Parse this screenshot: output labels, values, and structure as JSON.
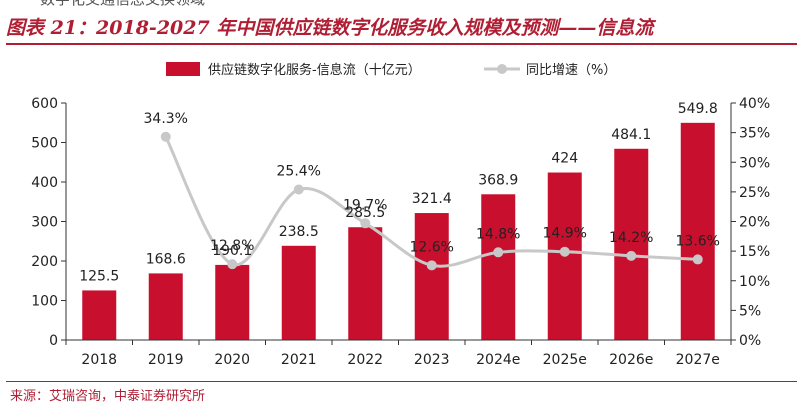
{
  "header": {
    "cut_text": "数字化交通信息交换领域",
    "title": "图表 21：2018-2027 年中国供应链数字化服务收入规模及预测——信息流"
  },
  "footer": {
    "source": "来源：艾瑞咨询，中泰证券研究所"
  },
  "chart_data": {
    "type": "bar",
    "categories": [
      "2018",
      "2019",
      "2020",
      "2021",
      "2022",
      "2023",
      "2024e",
      "2025e",
      "2026e",
      "2027e"
    ],
    "series": [
      {
        "name": "供应链数字化服务-信息流（十亿元）",
        "type": "bar",
        "axis": "left",
        "color": "#c8102e",
        "values": [
          125.5,
          168.6,
          190.1,
          238.5,
          285.5,
          321.4,
          368.9,
          424,
          484.1,
          549.8
        ],
        "labels": [
          "125.5",
          "168.6",
          "190.1",
          "238.5",
          "285.5",
          "321.4",
          "368.9",
          "424",
          "484.1",
          "549.8"
        ]
      },
      {
        "name": "同比增速（%）",
        "type": "line",
        "axis": "right",
        "color": "#c8c8c8",
        "values": [
          null,
          34.3,
          12.8,
          25.4,
          19.7,
          12.6,
          14.8,
          14.9,
          14.2,
          13.6
        ],
        "labels": [
          null,
          "34.3%",
          "12.8%",
          "25.4%",
          "19.7%",
          "12.6%",
          "14.8%",
          "14.9%",
          "14.2%",
          "13.6%"
        ]
      }
    ],
    "y_left": {
      "min": 0,
      "max": 600,
      "ticks": [
        "0",
        "100",
        "200",
        "300",
        "400",
        "500",
        "600"
      ]
    },
    "y_right": {
      "min": 0,
      "max": 40,
      "ticks": [
        "0%",
        "5%",
        "10%",
        "15%",
        "20%",
        "25%",
        "30%",
        "35%",
        "40%"
      ]
    },
    "legend": {
      "position": "top"
    },
    "grid": false
  }
}
